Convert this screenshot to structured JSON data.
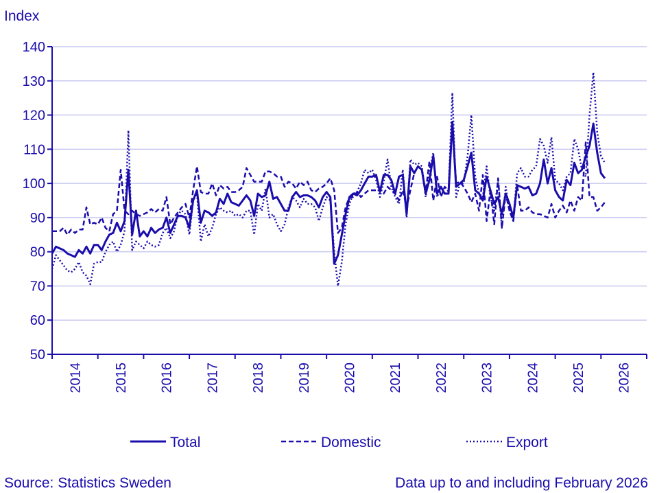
{
  "chart_data": {
    "type": "line",
    "ylabel": "Index",
    "ylim": [
      50,
      140
    ],
    "yticks": [
      50,
      60,
      70,
      80,
      90,
      100,
      110,
      120,
      130,
      140
    ],
    "xticklabels": [
      "2014",
      "2015",
      "2016",
      "2017",
      "2018",
      "2019",
      "2020",
      "2021",
      "2022",
      "2023",
      "2024",
      "2025",
      "2026"
    ],
    "x_start": "2014-01",
    "x_end": "2026-02",
    "frequency": "monthly",
    "grid": "horizontal",
    "legend": "bottom",
    "color": "#1a0dab",
    "gridcolor": "#c8c8f0",
    "series": [
      {
        "name": "Total",
        "style": "solid",
        "values": [
          79.5,
          81.5,
          81,
          80.5,
          79.5,
          79,
          78.5,
          80.5,
          79.5,
          81.5,
          79.5,
          82,
          82,
          80.5,
          83,
          85,
          85.5,
          88.5,
          86,
          89,
          104,
          85,
          92,
          84.5,
          86,
          84.5,
          87,
          85.5,
          86.5,
          87,
          90,
          85.5,
          88,
          90.5,
          90.5,
          90,
          87,
          95,
          98,
          88.5,
          92,
          91.5,
          90.5,
          91.5,
          95.5,
          94,
          97,
          94.5,
          94,
          93.5,
          95,
          96.5,
          95,
          90.5,
          97,
          96,
          96.5,
          100.5,
          95.5,
          96,
          94,
          92,
          92,
          96,
          97.5,
          96,
          96.5,
          96.5,
          96,
          95,
          93,
          96,
          97.5,
          96,
          76.5,
          79,
          85,
          91,
          96,
          97,
          96.5,
          98,
          100,
          102,
          102,
          102.5,
          97.5,
          102.5,
          102.5,
          101,
          97,
          102,
          102.5,
          91,
          105,
          103,
          105,
          104,
          97,
          101,
          108,
          97,
          99,
          97,
          97,
          118,
          99,
          100,
          101,
          105,
          109,
          98,
          97,
          95,
          102,
          98,
          94,
          96,
          91,
          97,
          94,
          90,
          99.5,
          99,
          98.5,
          99,
          96.5,
          97,
          100,
          107,
          100,
          104.5,
          98,
          96,
          95,
          101,
          99.5,
          106,
          103,
          104,
          108,
          111,
          117.5,
          109,
          103,
          101.5
        ]
      },
      {
        "name": "Domestic",
        "style": "dashed",
        "values": [
          86,
          86,
          86,
          87,
          85,
          86.5,
          85.5,
          86.5,
          86.5,
          93,
          88,
          88.5,
          88,
          90,
          87,
          86,
          91,
          92,
          104,
          92,
          91,
          92,
          91,
          90.5,
          91,
          91.5,
          92.5,
          91.5,
          92.5,
          92,
          96,
          88,
          90,
          91.5,
          93,
          94,
          90,
          98,
          105,
          97.5,
          97,
          97,
          100,
          96.5,
          99.5,
          98.5,
          99,
          97.5,
          97.5,
          98,
          99,
          104.5,
          102.5,
          100.5,
          100.5,
          100.5,
          103.5,
          103.5,
          103,
          102,
          102,
          99,
          100.5,
          100,
          98.5,
          100.5,
          99.5,
          100.5,
          98,
          97.5,
          98.5,
          99,
          100,
          101.5,
          98,
          85.5,
          87,
          93,
          96,
          96,
          97.5,
          96,
          97,
          98,
          98,
          98,
          98.5,
          97,
          99,
          98,
          97,
          95,
          98,
          93,
          98,
          103,
          105,
          104,
          97.5,
          106.5,
          95,
          102,
          96,
          99,
          98,
          118,
          100,
          100.5,
          99,
          97,
          94.5,
          97,
          92,
          102.5,
          89,
          98,
          88,
          101.5,
          87,
          97,
          92,
          89,
          99.5,
          92,
          92,
          93,
          91.5,
          91,
          91,
          90.5,
          90,
          94,
          90,
          92,
          93.5,
          91.5,
          95,
          92,
          96,
          95,
          112,
          96,
          96,
          92,
          93,
          94.5
        ]
      },
      {
        "name": "Export",
        "style": "dotted",
        "values": [
          75,
          79,
          77.5,
          76,
          74.5,
          74,
          75,
          77,
          74,
          73,
          70.5,
          76.5,
          77,
          77,
          80,
          82,
          83,
          80,
          82,
          86,
          115.5,
          80.5,
          83,
          82,
          81,
          83,
          82,
          81.5,
          82,
          85.5,
          87,
          84,
          86,
          91,
          92,
          91,
          85,
          95,
          97,
          83,
          88,
          84.5,
          87,
          91,
          93,
          92,
          91.5,
          92,
          90.5,
          91,
          90,
          92,
          92,
          85,
          94,
          92,
          98.5,
          90,
          91,
          88,
          86,
          88,
          93,
          96,
          95,
          93,
          95.5,
          94,
          94,
          93,
          89,
          93,
          96,
          95,
          80,
          70,
          77,
          88,
          94,
          97,
          97.5,
          100,
          104,
          103,
          104,
          101,
          96,
          100.5,
          107,
          99,
          96,
          94,
          104,
          90,
          107,
          105.5,
          106,
          105,
          96,
          103,
          109,
          96,
          99,
          97,
          98,
          126.5,
          96,
          100,
          100,
          108,
          120,
          102,
          97,
          96,
          105,
          96,
          92,
          101,
          87,
          99,
          92,
          89,
          103,
          104.5,
          102,
          102,
          104,
          105,
          113,
          111,
          106,
          113.5,
          101,
          100,
          98,
          102,
          103,
          113,
          110,
          104,
          102,
          120,
          132.5,
          115,
          108,
          106
        ]
      }
    ]
  },
  "footer": {
    "source": "Source: Statistics Sweden",
    "note": "Data up to and including February 2026"
  }
}
